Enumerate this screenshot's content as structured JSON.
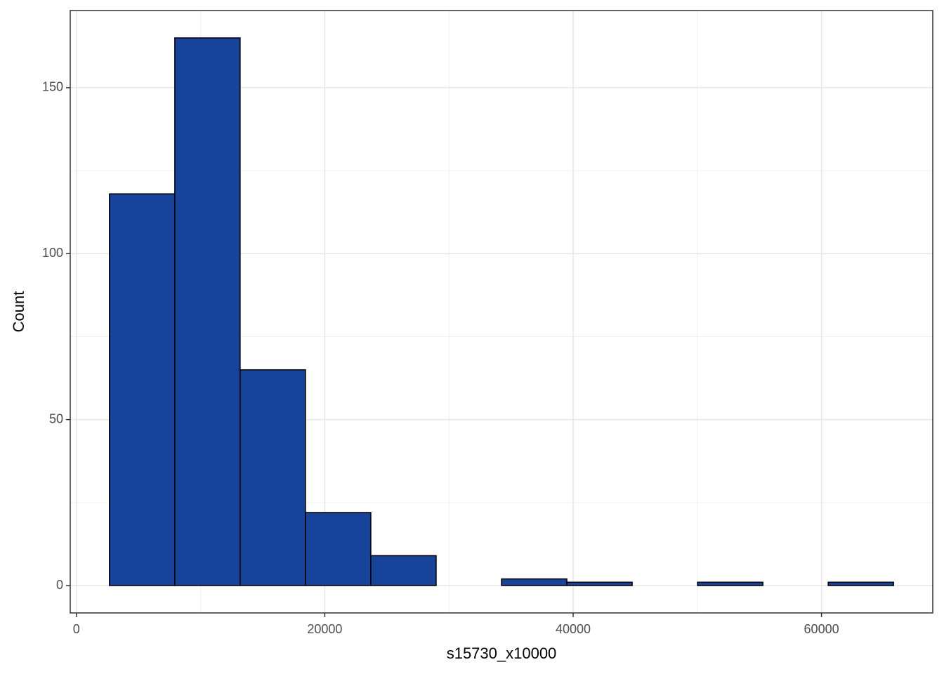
{
  "chart_data": {
    "type": "histogram",
    "x_label": "s15730_x10000",
    "y_label": "Count",
    "bins": [
      2659,
      7921,
      13183,
      18445,
      23707,
      28969,
      34231,
      39493,
      44755,
      50017,
      55279,
      60541,
      65803
    ],
    "values": [
      118,
      165,
      65,
      22,
      9,
      0,
      2,
      1,
      0,
      1,
      0,
      1
    ],
    "color": "#17449a",
    "edge_color": "#000000",
    "xlim": [
      -498,
      68960
    ],
    "xticks": [
      0,
      20000,
      40000,
      60000
    ],
    "x_minor_grid": [
      10000,
      30000,
      50000
    ],
    "ylim": [
      -8.25,
      173.25
    ],
    "yticks": [
      0,
      50,
      100,
      150
    ],
    "y_minor_grid": [
      25,
      75,
      125
    ],
    "grid": true
  }
}
